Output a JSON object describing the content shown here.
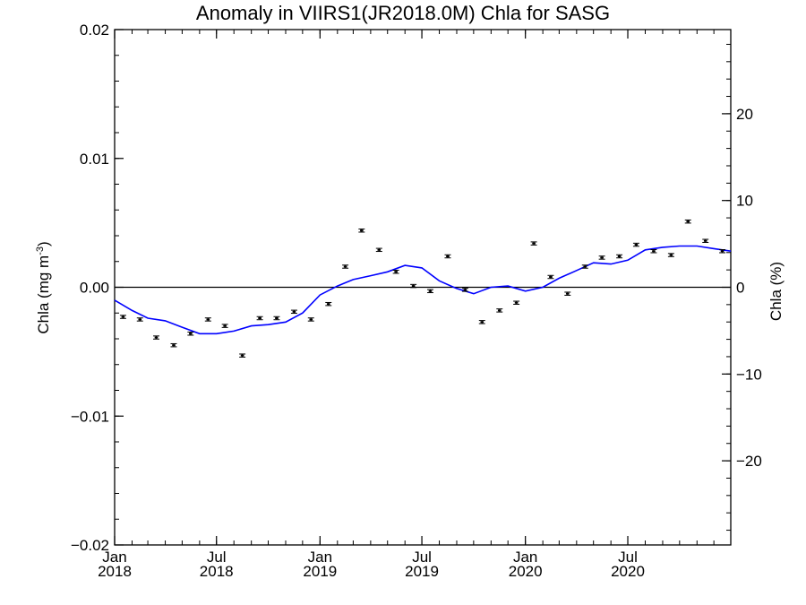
{
  "chart_data": {
    "type": "line",
    "title": "Anomaly in VIIRS1(JR2018.0M) Chla for SASG",
    "ylabel": "Chla (mg m",
    "ylabel_superscript": "-3",
    "ylabel_close": ")",
    "y2label": "Chla (%)",
    "ylim": [
      -0.02,
      0.02
    ],
    "y2lim": [
      -29.7,
      29.7
    ],
    "xlim": [
      "2018-01-01",
      "2020-12-31"
    ],
    "y_ticks": [
      {
        "value": -0.02,
        "label": "−0.02"
      },
      {
        "value": -0.01,
        "label": "−0.01"
      },
      {
        "value": 0.0,
        "label": "0.00"
      },
      {
        "value": 0.01,
        "label": "0.01"
      },
      {
        "value": 0.02,
        "label": "0.02"
      }
    ],
    "y2_ticks": [
      {
        "value": -20,
        "label": "−20"
      },
      {
        "value": -10,
        "label": "−10"
      },
      {
        "value": 0,
        "label": "0"
      },
      {
        "value": 10,
        "label": "10"
      },
      {
        "value": 20,
        "label": "20"
      }
    ],
    "x_ticks": [
      {
        "date": "2018-01-01",
        "month": "Jan",
        "year": "2018"
      },
      {
        "date": "2018-07-01",
        "month": "Jul",
        "year": "2018"
      },
      {
        "date": "2019-01-01",
        "month": "Jan",
        "year": "2019"
      },
      {
        "date": "2019-07-01",
        "month": "Jul",
        "year": "2019"
      },
      {
        "date": "2020-01-01",
        "month": "Jan",
        "year": "2020"
      },
      {
        "date": "2020-07-01",
        "month": "Jul",
        "year": "2020"
      }
    ],
    "zero_line": 0.0,
    "colors": {
      "points": "#000000",
      "smoothed": "#0000ff",
      "axes": "#000000"
    },
    "series": [
      {
        "kind": "points_with_errorbars",
        "x": [
          "2018-01-16",
          "2018-02-15",
          "2018-03-16",
          "2018-04-16",
          "2018-05-16",
          "2018-06-16",
          "2018-07-16",
          "2018-08-16",
          "2018-09-16",
          "2018-10-16",
          "2018-11-16",
          "2018-12-16",
          "2019-01-16",
          "2019-02-15",
          "2019-03-16",
          "2019-04-16",
          "2019-05-16",
          "2019-06-16",
          "2019-07-16",
          "2019-08-16",
          "2019-09-16",
          "2019-10-16",
          "2019-11-16",
          "2019-12-16",
          "2020-01-16",
          "2020-02-15",
          "2020-03-16",
          "2020-04-16",
          "2020-05-16",
          "2020-06-16",
          "2020-07-16",
          "2020-08-16",
          "2020-09-16",
          "2020-10-16",
          "2020-11-16",
          "2020-12-16"
        ],
        "y": [
          -0.0023,
          -0.0025,
          -0.0039,
          -0.0045,
          -0.0036,
          -0.0025,
          -0.003,
          -0.0053,
          -0.0024,
          -0.0024,
          -0.0019,
          -0.0025,
          -0.0013,
          0.0016,
          0.0044,
          0.0029,
          0.0012,
          0.0001,
          -0.0003,
          0.0024,
          -0.0002,
          -0.0027,
          -0.0018,
          -0.0012,
          0.0034,
          0.0008,
          -0.0005,
          0.0016,
          0.0023,
          0.0024,
          0.0033,
          0.0028,
          0.0025,
          0.0051,
          0.0036,
          0.0028
        ],
        "err": 0.00012
      },
      {
        "kind": "smoothed_line",
        "x": [
          "2018-01-01",
          "2018-02-01",
          "2018-03-01",
          "2018-04-01",
          "2018-05-01",
          "2018-06-01",
          "2018-07-01",
          "2018-08-01",
          "2018-09-01",
          "2018-10-01",
          "2018-11-01",
          "2018-12-01",
          "2019-01-01",
          "2019-02-01",
          "2019-03-01",
          "2019-04-01",
          "2019-05-01",
          "2019-06-01",
          "2019-07-01",
          "2019-08-01",
          "2019-09-01",
          "2019-10-01",
          "2019-11-01",
          "2019-12-01",
          "2020-01-01",
          "2020-02-01",
          "2020-03-01",
          "2020-04-01",
          "2020-05-01",
          "2020-06-01",
          "2020-07-01",
          "2020-08-01",
          "2020-09-01",
          "2020-10-01",
          "2020-11-01",
          "2020-12-01",
          "2020-12-31"
        ],
        "y": [
          -0.001,
          -0.0018,
          -0.0024,
          -0.0026,
          -0.0031,
          -0.0036,
          -0.0036,
          -0.0034,
          -0.003,
          -0.0029,
          -0.0027,
          -0.002,
          -0.0006,
          0.0001,
          0.0006,
          0.0009,
          0.0012,
          0.0017,
          0.0015,
          0.0005,
          -0.0001,
          -0.0005,
          0.0,
          0.0001,
          -0.0003,
          0.0,
          0.0007,
          0.0013,
          0.0019,
          0.0018,
          0.0021,
          0.0029,
          0.0031,
          0.0032,
          0.0032,
          0.003,
          0.0028
        ]
      }
    ]
  }
}
